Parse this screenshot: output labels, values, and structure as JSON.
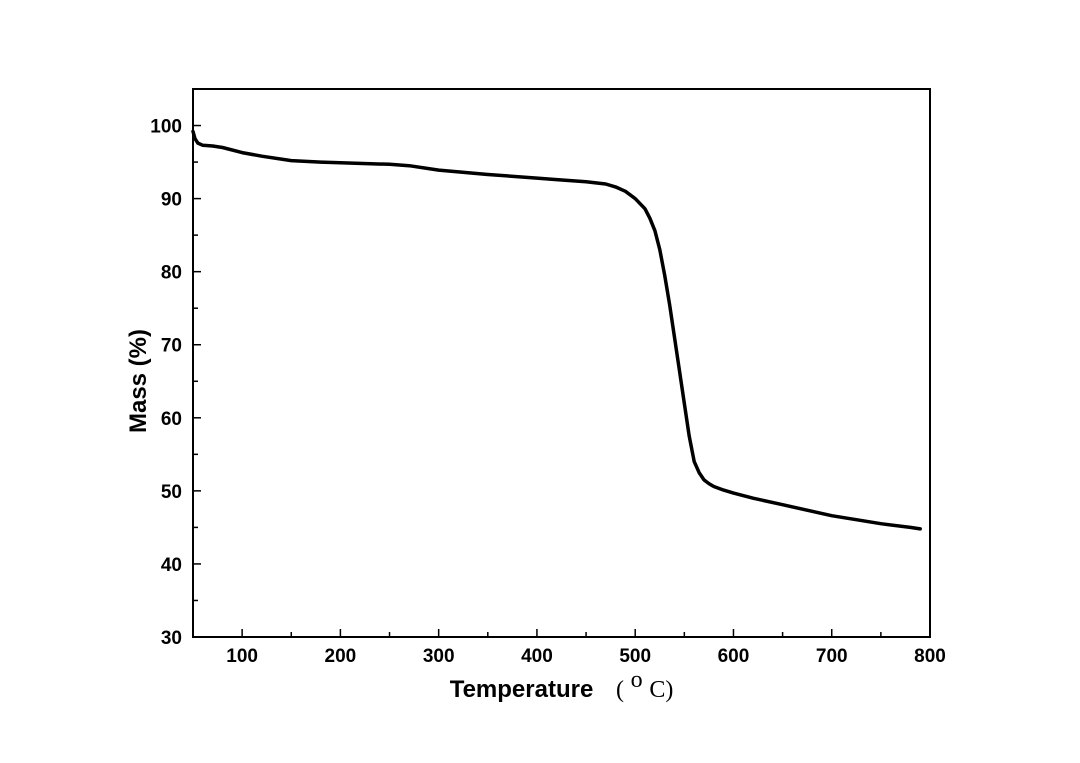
{
  "chart_data": {
    "type": "line",
    "title": "",
    "xlabel": "Temperature",
    "xlabel_unit_open": "(",
    "xlabel_unit_sup": "o",
    "xlabel_unit_rest": "C)",
    "ylabel": "Mass (%)",
    "xlim": [
      50,
      800
    ],
    "ylim": [
      30,
      105
    ],
    "grid": false,
    "legend": "none",
    "x_ticks": [
      100,
      200,
      300,
      400,
      500,
      600,
      700,
      800
    ],
    "y_ticks": [
      30,
      40,
      50,
      60,
      70,
      80,
      90,
      100
    ],
    "x_tick_labels": [
      "100",
      "200",
      "300",
      "400",
      "500",
      "600",
      "700",
      "800"
    ],
    "y_tick_labels": [
      "30",
      "40",
      "50",
      "60",
      "70",
      "80",
      "90",
      "100"
    ],
    "line_color": "#000000",
    "series": [
      {
        "name": "Mass",
        "x": [
          50,
          52,
          55,
          60,
          70,
          80,
          100,
          120,
          150,
          180,
          200,
          250,
          270,
          300,
          350,
          400,
          420,
          450,
          470,
          480,
          490,
          500,
          510,
          515,
          520,
          525,
          530,
          535,
          540,
          545,
          550,
          555,
          560,
          565,
          570,
          575,
          580,
          590,
          600,
          620,
          650,
          700,
          750,
          780,
          790
        ],
        "y": [
          99.2,
          98.2,
          97.6,
          97.3,
          97.2,
          97.0,
          96.3,
          95.8,
          95.2,
          95.0,
          94.9,
          94.7,
          94.5,
          93.9,
          93.3,
          92.8,
          92.6,
          92.3,
          92.0,
          91.6,
          91.0,
          90.0,
          88.6,
          87.3,
          85.6,
          83.0,
          79.5,
          75.5,
          71.0,
          66.5,
          62.0,
          57.5,
          54.0,
          52.5,
          51.5,
          51.0,
          50.6,
          50.1,
          49.7,
          49.0,
          48.1,
          46.6,
          45.5,
          45.0,
          44.8
        ]
      }
    ]
  }
}
